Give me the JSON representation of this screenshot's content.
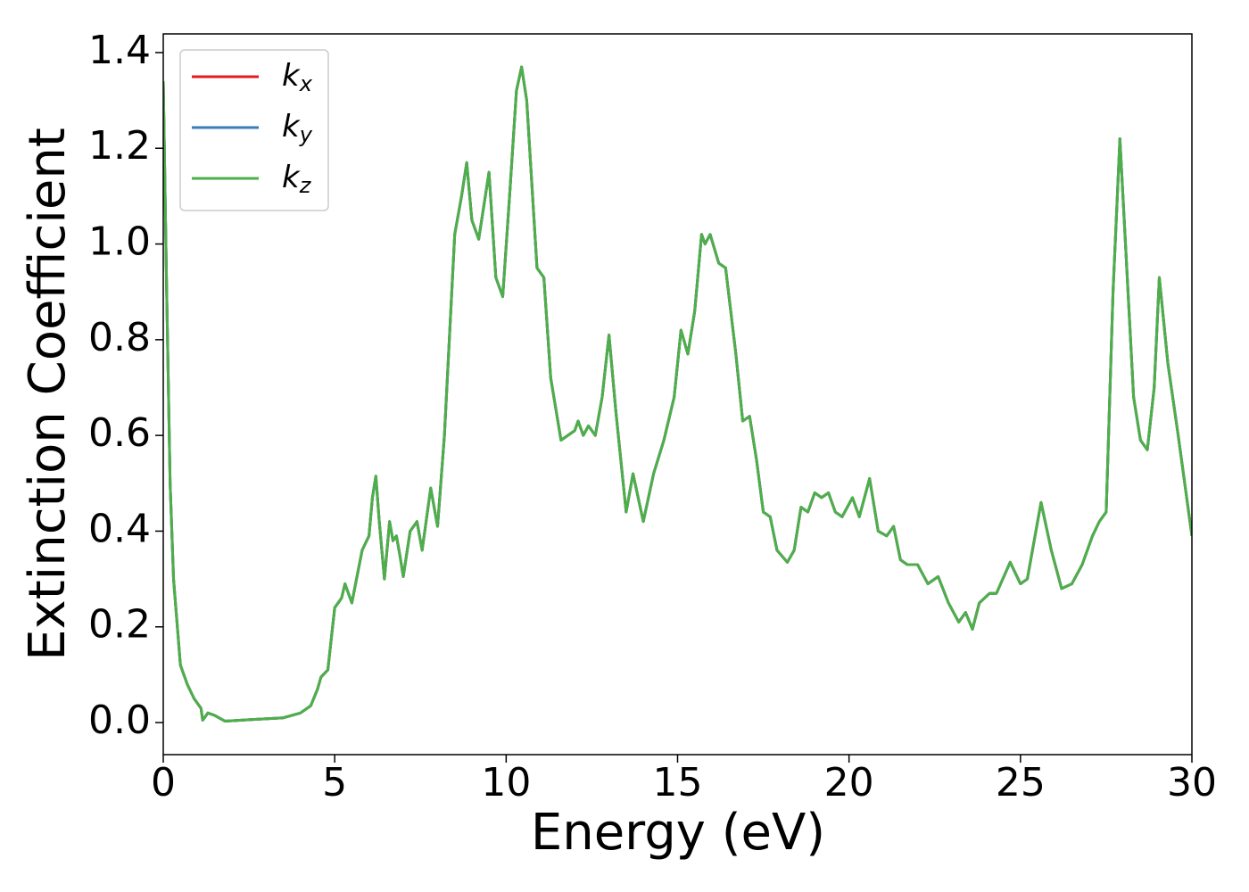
{
  "chart_data": {
    "type": "line",
    "xlabel": "Energy (eV)",
    "ylabel": "Extinction Coefficient",
    "x": [
      0,
      0.1,
      0.2,
      0.3,
      0.5,
      0.7,
      0.9,
      1.1,
      1.15,
      1.3,
      1.5,
      1.8,
      2.5,
      3.5,
      4.0,
      4.3,
      4.5,
      4.6,
      4.8,
      5.0,
      5.2,
      5.3,
      5.5,
      5.8,
      6.0,
      6.1,
      6.2,
      6.3,
      6.45,
      6.6,
      6.7,
      6.8,
      6.9,
      7.0,
      7.2,
      7.4,
      7.55,
      7.8,
      8.0,
      8.2,
      8.5,
      8.7,
      8.85,
      9.0,
      9.2,
      9.5,
      9.7,
      9.9,
      10.1,
      10.3,
      10.45,
      10.6,
      10.9,
      11.1,
      11.3,
      11.6,
      11.8,
      12.0,
      12.1,
      12.25,
      12.4,
      12.6,
      12.8,
      13.0,
      13.2,
      13.5,
      13.7,
      14.0,
      14.3,
      14.6,
      14.9,
      15.1,
      15.3,
      15.5,
      15.7,
      15.8,
      15.95,
      16.2,
      16.4,
      16.7,
      16.9,
      17.1,
      17.3,
      17.5,
      17.7,
      17.9,
      18.2,
      18.4,
      18.6,
      18.8,
      19.0,
      19.2,
      19.4,
      19.6,
      19.8,
      20.1,
      20.3,
      20.6,
      20.85,
      21.1,
      21.3,
      21.5,
      21.7,
      22.0,
      22.3,
      22.6,
      22.9,
      23.2,
      23.4,
      23.6,
      23.8,
      24.1,
      24.3,
      24.7,
      25.0,
      25.2,
      25.6,
      25.9,
      26.2,
      26.5,
      26.8,
      27.1,
      27.3,
      27.5,
      27.7,
      27.9,
      28.1,
      28.3,
      28.5,
      28.7,
      28.9,
      29.05,
      29.3,
      29.6,
      30
    ],
    "series": [
      {
        "name": "kx",
        "color": "#e41a1c",
        "values": [
          1.34,
          0.9,
          0.5,
          0.3,
          0.12,
          0.08,
          0.05,
          0.03,
          0.005,
          0.02,
          0.015,
          0.003,
          0.006,
          0.01,
          0.02,
          0.035,
          0.07,
          0.095,
          0.11,
          0.24,
          0.26,
          0.29,
          0.25,
          0.36,
          0.39,
          0.47,
          0.515,
          0.42,
          0.3,
          0.42,
          0.38,
          0.39,
          0.35,
          0.305,
          0.4,
          0.42,
          0.36,
          0.49,
          0.41,
          0.6,
          1.02,
          1.1,
          1.17,
          1.05,
          1.01,
          1.15,
          0.93,
          0.89,
          1.1,
          1.32,
          1.37,
          1.3,
          0.95,
          0.93,
          0.72,
          0.59,
          0.6,
          0.61,
          0.63,
          0.6,
          0.62,
          0.6,
          0.68,
          0.81,
          0.65,
          0.44,
          0.52,
          0.42,
          0.52,
          0.59,
          0.68,
          0.82,
          0.77,
          0.86,
          1.02,
          1.0,
          1.02,
          0.96,
          0.95,
          0.77,
          0.63,
          0.64,
          0.55,
          0.44,
          0.43,
          0.36,
          0.335,
          0.36,
          0.45,
          0.44,
          0.48,
          0.47,
          0.48,
          0.44,
          0.43,
          0.47,
          0.43,
          0.51,
          0.4,
          0.39,
          0.41,
          0.34,
          0.33,
          0.33,
          0.29,
          0.305,
          0.25,
          0.21,
          0.23,
          0.195,
          0.25,
          0.27,
          0.27,
          0.335,
          0.29,
          0.3,
          0.46,
          0.36,
          0.28,
          0.29,
          0.33,
          0.39,
          0.42,
          0.44,
          0.9,
          1.22,
          0.95,
          0.68,
          0.59,
          0.57,
          0.7,
          0.93,
          0.75,
          0.6,
          0.39
        ]
      },
      {
        "name": "ky",
        "color": "#377eb8",
        "values": [
          1.34,
          0.9,
          0.5,
          0.3,
          0.12,
          0.08,
          0.05,
          0.03,
          0.005,
          0.02,
          0.015,
          0.003,
          0.006,
          0.01,
          0.02,
          0.035,
          0.07,
          0.095,
          0.11,
          0.24,
          0.26,
          0.29,
          0.25,
          0.36,
          0.39,
          0.47,
          0.515,
          0.42,
          0.3,
          0.42,
          0.38,
          0.39,
          0.35,
          0.305,
          0.4,
          0.42,
          0.36,
          0.49,
          0.41,
          0.6,
          1.02,
          1.1,
          1.17,
          1.05,
          1.01,
          1.15,
          0.93,
          0.89,
          1.1,
          1.32,
          1.37,
          1.3,
          0.95,
          0.93,
          0.72,
          0.59,
          0.6,
          0.61,
          0.63,
          0.6,
          0.62,
          0.6,
          0.68,
          0.81,
          0.65,
          0.44,
          0.52,
          0.42,
          0.52,
          0.59,
          0.68,
          0.82,
          0.77,
          0.86,
          1.02,
          1.0,
          1.02,
          0.96,
          0.95,
          0.77,
          0.63,
          0.64,
          0.55,
          0.44,
          0.43,
          0.36,
          0.335,
          0.36,
          0.45,
          0.44,
          0.48,
          0.47,
          0.48,
          0.44,
          0.43,
          0.47,
          0.43,
          0.51,
          0.4,
          0.39,
          0.41,
          0.34,
          0.33,
          0.33,
          0.29,
          0.305,
          0.25,
          0.21,
          0.23,
          0.195,
          0.25,
          0.27,
          0.27,
          0.335,
          0.29,
          0.3,
          0.46,
          0.36,
          0.28,
          0.29,
          0.33,
          0.39,
          0.42,
          0.44,
          0.9,
          1.22,
          0.95,
          0.68,
          0.59,
          0.57,
          0.7,
          0.93,
          0.75,
          0.6,
          0.39
        ]
      },
      {
        "name": "kz",
        "color": "#4daf4a",
        "values": [
          1.34,
          0.9,
          0.5,
          0.3,
          0.12,
          0.08,
          0.05,
          0.03,
          0.005,
          0.02,
          0.015,
          0.003,
          0.006,
          0.01,
          0.02,
          0.035,
          0.07,
          0.095,
          0.11,
          0.24,
          0.26,
          0.29,
          0.25,
          0.36,
          0.39,
          0.47,
          0.515,
          0.42,
          0.3,
          0.42,
          0.38,
          0.39,
          0.35,
          0.305,
          0.4,
          0.42,
          0.36,
          0.49,
          0.41,
          0.6,
          1.02,
          1.1,
          1.17,
          1.05,
          1.01,
          1.15,
          0.93,
          0.89,
          1.1,
          1.32,
          1.37,
          1.3,
          0.95,
          0.93,
          0.72,
          0.59,
          0.6,
          0.61,
          0.63,
          0.6,
          0.62,
          0.6,
          0.68,
          0.81,
          0.65,
          0.44,
          0.52,
          0.42,
          0.52,
          0.59,
          0.68,
          0.82,
          0.77,
          0.86,
          1.02,
          1.0,
          1.02,
          0.96,
          0.95,
          0.77,
          0.63,
          0.64,
          0.55,
          0.44,
          0.43,
          0.36,
          0.335,
          0.36,
          0.45,
          0.44,
          0.48,
          0.47,
          0.48,
          0.44,
          0.43,
          0.47,
          0.43,
          0.51,
          0.4,
          0.39,
          0.41,
          0.34,
          0.33,
          0.33,
          0.29,
          0.305,
          0.25,
          0.21,
          0.23,
          0.195,
          0.25,
          0.27,
          0.27,
          0.335,
          0.29,
          0.3,
          0.46,
          0.36,
          0.28,
          0.29,
          0.33,
          0.39,
          0.42,
          0.44,
          0.9,
          1.22,
          0.95,
          0.68,
          0.59,
          0.57,
          0.7,
          0.93,
          0.75,
          0.6,
          0.39
        ]
      }
    ],
    "xlim": [
      0,
      30
    ],
    "xticks": [
      0,
      5,
      10,
      15,
      20,
      25,
      30
    ],
    "ylim": [
      -0.067,
      1.439
    ],
    "yticks": [
      {
        "value": 0,
        "label": "0.0"
      },
      {
        "value": 0.2,
        "label": "0.2"
      },
      {
        "value": 0.4,
        "label": "0.4"
      },
      {
        "value": 0.6,
        "label": "0.6"
      },
      {
        "value": 0.8,
        "label": "0.8"
      },
      {
        "value": 1,
        "label": "1.0"
      },
      {
        "value": 1.2,
        "label": "1.2"
      },
      {
        "value": 1.4,
        "label": "1.4"
      }
    ],
    "grid": false,
    "legend": "upper left"
  }
}
